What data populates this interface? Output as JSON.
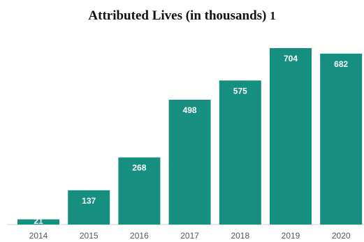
{
  "chart_data": {
    "type": "bar",
    "title": "Attributed Lives (in thousands)",
    "title_footnote": "1",
    "categories": [
      "2014",
      "2015",
      "2016",
      "2017",
      "2018",
      "2019",
      "2020"
    ],
    "values": [
      21,
      137,
      268,
      498,
      575,
      704,
      682
    ],
    "data_labels": [
      "21",
      "137",
      "268",
      "498",
      "575",
      "704",
      "682"
    ],
    "bar_color": "#178f80",
    "ylim": [
      0,
      704
    ],
    "grid": false,
    "legend": "none"
  }
}
